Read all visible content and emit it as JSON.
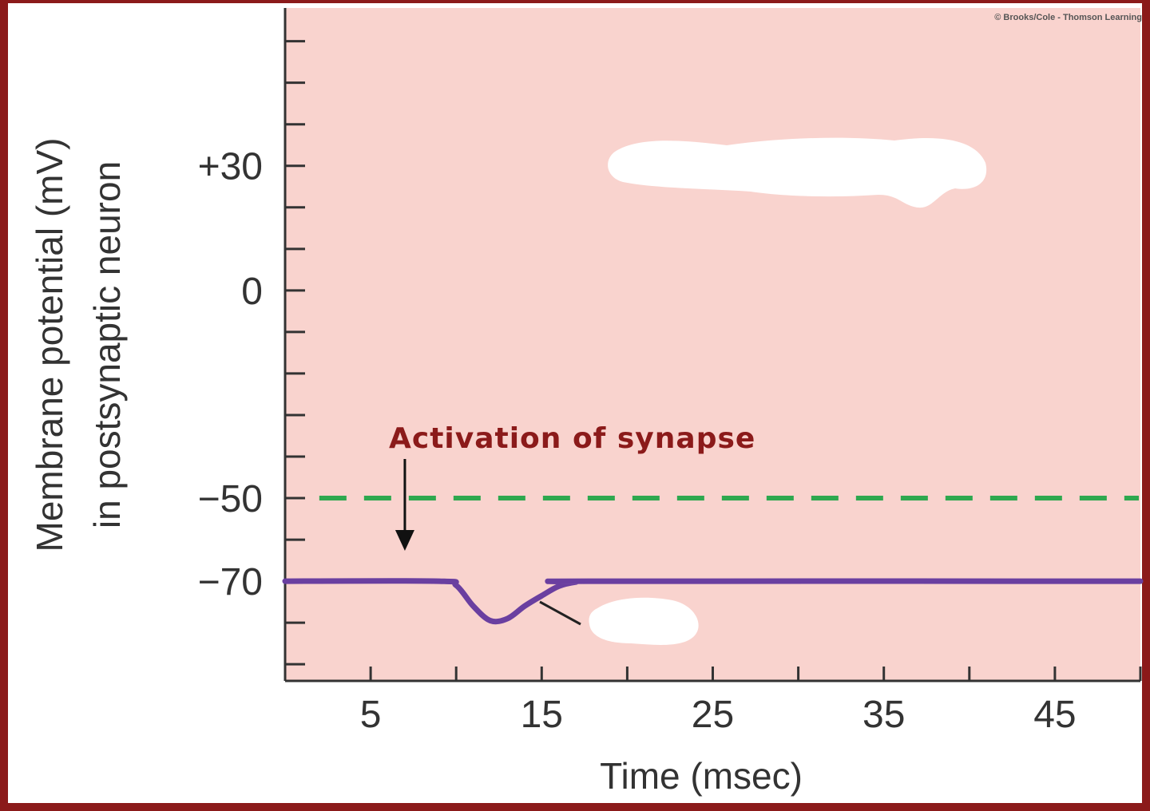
{
  "chart_data": {
    "type": "line",
    "title": "",
    "xlabel": "Time (msec)",
    "ylabel": [
      "Membrane potential (mV)",
      "in postsynaptic neuron"
    ],
    "xlim": [
      0,
      50
    ],
    "ylim": [
      -94,
      68
    ],
    "x_ticks": [
      5,
      15,
      25,
      35,
      45
    ],
    "y_ticks": [
      {
        "value": 30,
        "label": "+30"
      },
      {
        "value": 0,
        "label": "0"
      },
      {
        "value": -50,
        "label": "−50"
      },
      {
        "value": -70,
        "label": "−70"
      }
    ],
    "series": [
      {
        "color": "#6a3fa0",
        "points": [
          [
            0,
            -70
          ],
          [
            9,
            -70
          ],
          [
            10,
            -71
          ],
          [
            11,
            -76
          ],
          [
            12,
            -79.5
          ],
          [
            13,
            -79
          ],
          [
            14,
            -76
          ],
          [
            15,
            -73.5
          ],
          [
            16,
            -71.2
          ],
          [
            17,
            -70.2
          ],
          [
            18,
            -70
          ],
          [
            50,
            -70
          ]
        ]
      }
    ],
    "threshold": {
      "value": -50,
      "color": "#2ea84f",
      "style": "dashed"
    },
    "annotation": {
      "text": "Activation of synapse",
      "x": 7,
      "color": "#8b1a1a"
    },
    "credit": "© Brooks/Cole - Thomson Learning",
    "plot_background": "#f9d3ce",
    "frame_color": "#8b1a1a"
  }
}
